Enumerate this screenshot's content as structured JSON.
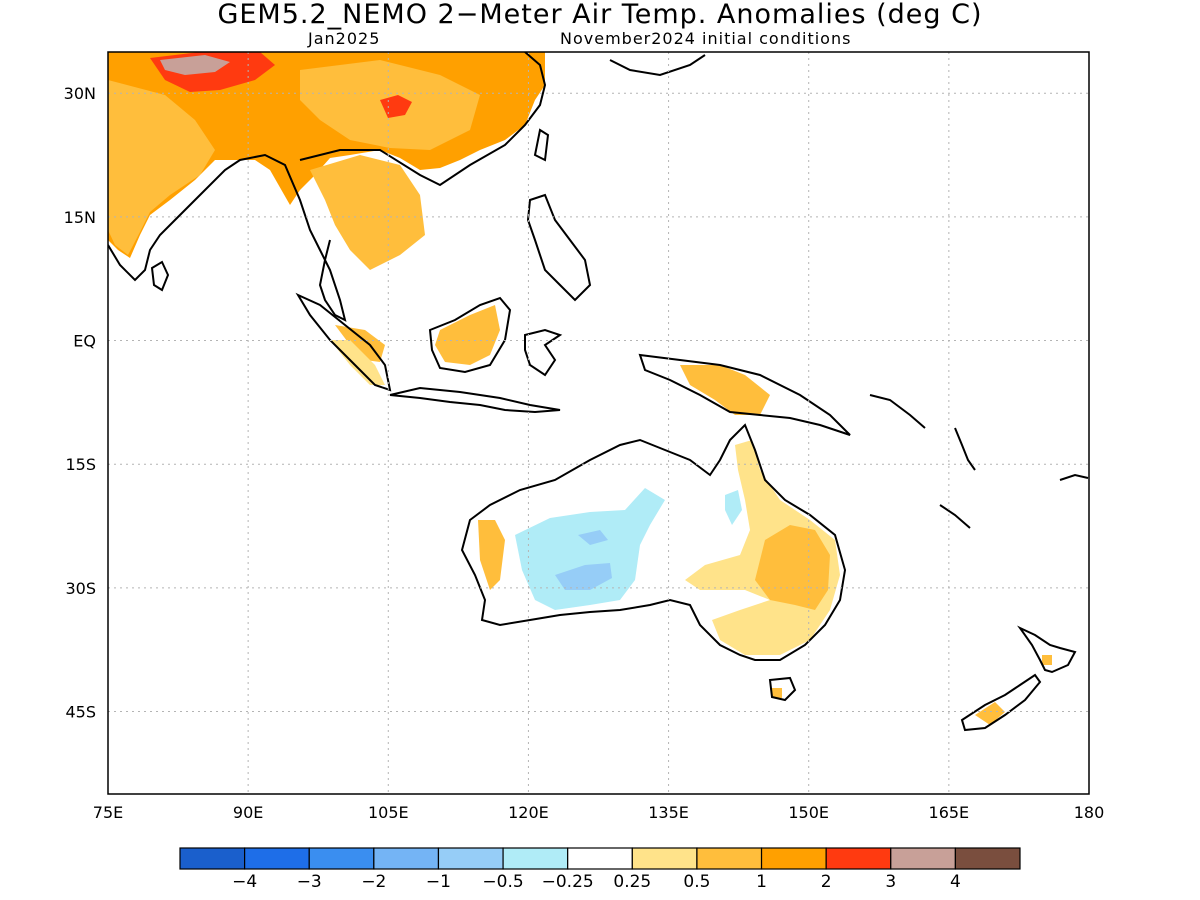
{
  "title": "GEM5.2_NEMO 2−Meter Air Temp. Anomalies (deg C)",
  "subtitle_left": "Jan2025",
  "subtitle_right": "November2024 initial conditions",
  "map": {
    "lon_range": [
      75,
      180
    ],
    "lat_range": [
      -55,
      35
    ],
    "lon_ticks": [
      {
        "value": 75,
        "label": "75E"
      },
      {
        "value": 90,
        "label": "90E"
      },
      {
        "value": 105,
        "label": "105E"
      },
      {
        "value": 120,
        "label": "120E"
      },
      {
        "value": 135,
        "label": "135E"
      },
      {
        "value": 150,
        "label": "150E"
      },
      {
        "value": 165,
        "label": "165E"
      },
      {
        "value": 180,
        "label": "180"
      }
    ],
    "lat_ticks": [
      {
        "value": 30,
        "label": "30N"
      },
      {
        "value": 15,
        "label": "15N"
      },
      {
        "value": 0,
        "label": "EQ"
      },
      {
        "value": -15,
        "label": "15S"
      },
      {
        "value": -30,
        "label": "30S"
      },
      {
        "value": -45,
        "label": "45S"
      }
    ],
    "grid": true
  },
  "colorbar": {
    "colors": [
      "#1a5fcc",
      "#1e6ee8",
      "#3a8ef0",
      "#74b4f5",
      "#96cdf7",
      "#b0ecf7",
      "#ffffff",
      "#ffe38a",
      "#ffbe3c",
      "#ffa000",
      "#ff3a10",
      "#c8a098",
      "#7a4e3e"
    ],
    "labels": [
      "−4",
      "−3",
      "−2",
      "−1",
      "−0.5",
      "−0.25",
      "0.25",
      "0.5",
      "1",
      "2",
      "3",
      "4"
    ]
  }
}
